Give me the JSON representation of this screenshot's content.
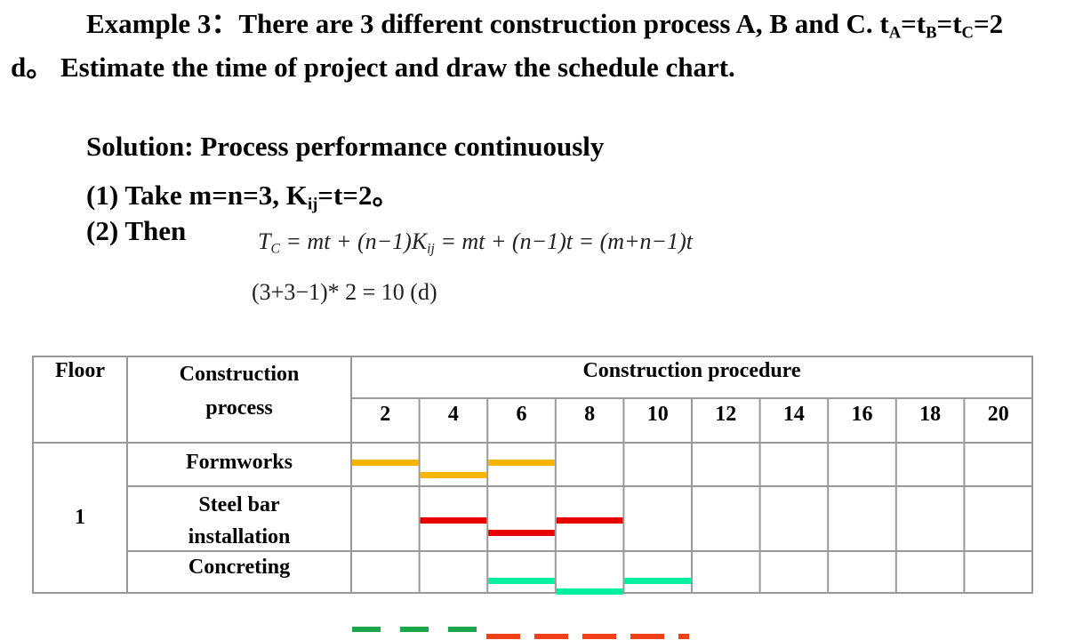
{
  "problem": {
    "parts": [
      "Example 3：There are 3 different construction process A, B and C. t",
      "A",
      "=t",
      "B",
      "=t",
      "C",
      "=2 d。 Estimate the time of project and draw the schedule chart."
    ]
  },
  "solution": {
    "heading": "Solution: Process performance continuously",
    "step1": {
      "parts": [
        "(1) Take m=n=3, K",
        "ij",
        "=t=2。"
      ]
    },
    "step2": {
      "label": "(2) Then",
      "formula": {
        "parts": [
          "T",
          "C",
          " = mt + (n−1)K",
          "ij",
          " = mt + (n−1)t = (m+n−1)t"
        ]
      },
      "result": "(3+3−1)* 2 = 10 (d)"
    }
  },
  "schedule": {
    "headers": {
      "floor": "Floor",
      "process": "Construction process",
      "procedure": "Construction procedure"
    },
    "ticks": [
      2,
      4,
      6,
      8,
      10,
      12,
      14,
      16,
      18,
      20
    ],
    "floor": "1",
    "rows": [
      {
        "process": "Formworks",
        "color": "#f7b500",
        "segments": [
          {
            "start": 0,
            "end": 2
          },
          {
            "start": 2,
            "end": 4
          },
          {
            "start": 4,
            "end": 6
          }
        ]
      },
      {
        "process": "Steel bar installation",
        "color": "#e80000",
        "segments": [
          {
            "start": 2,
            "end": 4
          },
          {
            "start": 4,
            "end": 6
          },
          {
            "start": 6,
            "end": 8
          }
        ]
      },
      {
        "process": "Concreting",
        "color": "#00f0a0",
        "segments": [
          {
            "start": 4,
            "end": 6
          },
          {
            "start": 6,
            "end": 8
          },
          {
            "start": 8,
            "end": 10
          }
        ]
      }
    ]
  }
}
